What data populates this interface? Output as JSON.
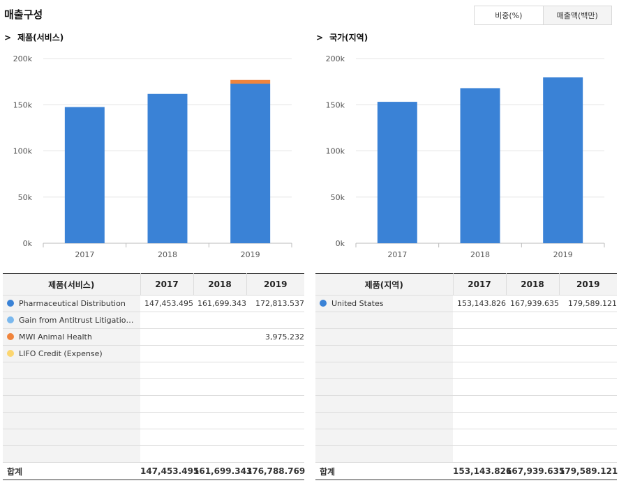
{
  "header": {
    "title": "매출구성",
    "toggle": [
      "비중(%)",
      "매출액(백만)"
    ]
  },
  "panels": [
    {
      "title": "제품(서비스)",
      "table_header": [
        "제품(서비스)",
        "2017",
        "2018",
        "2019"
      ],
      "rows": [
        {
          "color": "#3a82d6",
          "name": "Pharmaceutical Distribution",
          "values": [
            "147,453.495",
            "161,699.343",
            "172,813.537"
          ]
        },
        {
          "color": "#7ab8ee",
          "name": "Gain from Antitrust Litigatio…",
          "values": [
            "",
            "",
            ""
          ]
        },
        {
          "color": "#f0843c",
          "name": "MWI Animal Health",
          "values": [
            "",
            "",
            "3,975.232"
          ]
        },
        {
          "color": "#fcd670",
          "name": "LIFO Credit (Expense)",
          "values": [
            "",
            "",
            ""
          ]
        }
      ],
      "total": {
        "label": "합계",
        "values": [
          "147,453.495",
          "161,699.343",
          "176,788.769"
        ]
      }
    },
    {
      "title": "국가(지역)",
      "table_header": [
        "제품(지역)",
        "2017",
        "2018",
        "2019"
      ],
      "rows": [
        {
          "color": "#3a82d6",
          "name": "United States",
          "values": [
            "153,143.826",
            "167,939.635",
            "179,589.121"
          ]
        }
      ],
      "total": {
        "label": "합계",
        "values": [
          "153,143.826",
          "167,939.635",
          "179,589.121"
        ]
      }
    }
  ],
  "chart_data": [
    {
      "type": "bar",
      "stacked": true,
      "categories": [
        "2017",
        "2018",
        "2019"
      ],
      "series": [
        {
          "name": "Pharmaceutical Distribution",
          "color": "#3a82d6",
          "values": [
            147453.495,
            161699.343,
            172813.537
          ]
        },
        {
          "name": "Gain from Antitrust Litigatio…",
          "color": "#7ab8ee",
          "values": [
            0,
            0,
            0
          ]
        },
        {
          "name": "MWI Animal Health",
          "color": "#f0843c",
          "values": [
            0,
            0,
            3975.232
          ]
        },
        {
          "name": "LIFO Credit (Expense)",
          "color": "#fcd670",
          "values": [
            0,
            0,
            0
          ]
        }
      ],
      "ylim": [
        0,
        200000
      ],
      "yticks": [
        0,
        50000,
        100000,
        150000,
        200000
      ],
      "ytick_labels": [
        "0k",
        "50k",
        "100k",
        "150k",
        "200k"
      ],
      "grid": true
    },
    {
      "type": "bar",
      "stacked": true,
      "categories": [
        "2017",
        "2018",
        "2019"
      ],
      "series": [
        {
          "name": "United States",
          "color": "#3a82d6",
          "values": [
            153143.826,
            167939.635,
            179589.121
          ]
        }
      ],
      "ylim": [
        0,
        200000
      ],
      "yticks": [
        0,
        50000,
        100000,
        150000,
        200000
      ],
      "ytick_labels": [
        "0k",
        "50k",
        "100k",
        "150k",
        "200k"
      ],
      "grid": true
    }
  ]
}
